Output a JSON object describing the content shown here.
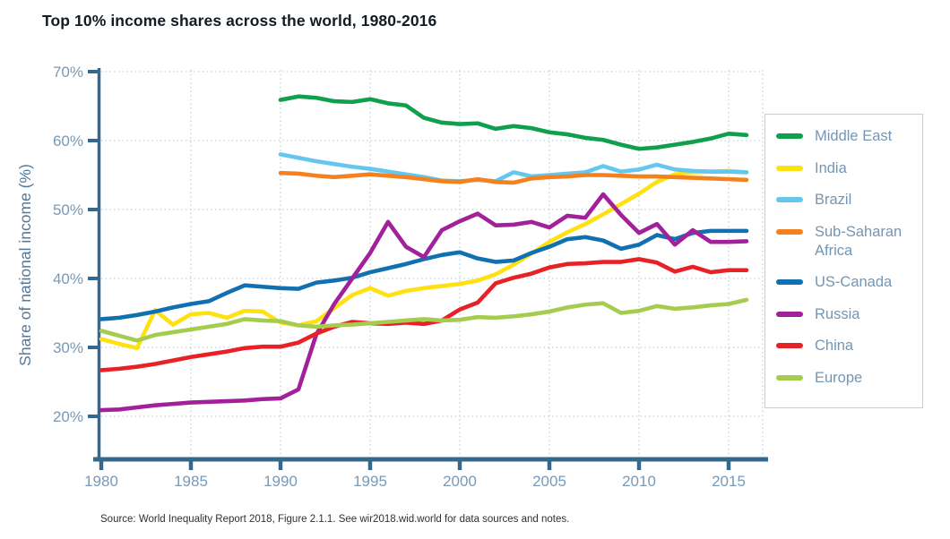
{
  "header": {
    "title": "Top 10% income shares across the world, 1980-2016"
  },
  "source": {
    "text": "Source: World Inequality Report 2018, Figure 2.1.1. See wir2018.wid.world for data sources and notes."
  },
  "colors": {
    "axis": "#34688c",
    "tick_text": "#7899b6",
    "axis_title_text": "#54799d",
    "grid": "#bcd2de",
    "page_title_text": "#131b23",
    "legend_text": "#7496b4",
    "legend_border": "#c9cdd1"
  },
  "chart_data": {
    "type": "line",
    "title": "Top 10% income shares across the world, 1980-2016",
    "xlabel": "",
    "ylabel": "Share of national income (%)",
    "xlim": [
      1980,
      2017
    ],
    "ylim": [
      16,
      71
    ],
    "grid": "dotted",
    "legend_position": "right",
    "xticks": [
      1980,
      1985,
      1990,
      1995,
      2000,
      2005,
      2010,
      2015
    ],
    "yticks": [
      20,
      30,
      40,
      50,
      60,
      70
    ],
    "ytick_labels": [
      "20%",
      "30%",
      "40%",
      "50%",
      "60%",
      "70%"
    ],
    "series": [
      {
        "name": "Middle East",
        "color": "#0fa04e",
        "start_year": 1990,
        "values": [
          65.9,
          66.4,
          66.2,
          65.7,
          65.6,
          66.0,
          65.4,
          65.1,
          63.3,
          62.6,
          62.4,
          62.5,
          61.7,
          62.1,
          61.8,
          61.2,
          60.9,
          60.4,
          60.1,
          59.4,
          58.8,
          59.0,
          59.4,
          59.8,
          60.3,
          61.0,
          60.8
        ]
      },
      {
        "name": "India",
        "color": "#ffe112",
        "start_year": 1980,
        "values": [
          31.2,
          30.5,
          29.9,
          35.4,
          33.3,
          34.8,
          35.0,
          34.3,
          35.3,
          35.2,
          33.6,
          33.2,
          33.8,
          35.7,
          37.6,
          38.6,
          37.5,
          38.2,
          38.6,
          38.9,
          39.2,
          39.7,
          40.6,
          42.0,
          43.6,
          45.3,
          46.7,
          47.9,
          49.3,
          50.8,
          52.3,
          54.0,
          55.1,
          55.4,
          55.5,
          55.6,
          55.4
        ]
      },
      {
        "name": "Brazil",
        "color": "#66c7ee",
        "start_year": 1990,
        "values": [
          58.0,
          57.5,
          57.0,
          56.6,
          56.2,
          55.9,
          55.5,
          55.1,
          54.7,
          54.2,
          54.1,
          54.3,
          54.1,
          55.4,
          54.8,
          55.0,
          55.2,
          55.4,
          56.3,
          55.5,
          55.8,
          56.5,
          55.8,
          55.6,
          55.5,
          55.5,
          55.4
        ]
      },
      {
        "name": "Sub-Saharan Africa",
        "color": "#f5801e",
        "start_year": 1990,
        "values": [
          55.3,
          55.2,
          54.9,
          54.7,
          54.9,
          55.1,
          54.9,
          54.7,
          54.4,
          54.1,
          54.0,
          54.4,
          54.0,
          53.9,
          54.5,
          54.7,
          54.8,
          55.0,
          55.0,
          54.9,
          54.8,
          54.8,
          54.7,
          54.6,
          54.5,
          54.4,
          54.3
        ]
      },
      {
        "name": "US-Canada",
        "color": "#1170b0",
        "start_year": 1980,
        "values": [
          34.1,
          34.3,
          34.7,
          35.2,
          35.8,
          36.3,
          36.7,
          37.9,
          39.0,
          38.8,
          38.6,
          38.5,
          39.4,
          39.7,
          40.1,
          40.9,
          41.5,
          42.1,
          42.8,
          43.4,
          43.8,
          42.9,
          42.4,
          42.6,
          43.7,
          44.6,
          45.7,
          46.0,
          45.5,
          44.3,
          44.9,
          46.3,
          45.7,
          46.6,
          46.9,
          46.9,
          46.9
        ]
      },
      {
        "name": "Russia",
        "color": "#a2209a",
        "start_year": 1980,
        "values": [
          20.9,
          21.0,
          21.3,
          21.6,
          21.8,
          22.0,
          22.1,
          22.2,
          22.3,
          22.5,
          22.6,
          23.9,
          31.9,
          36.3,
          40.0,
          43.7,
          48.2,
          44.6,
          43.1,
          47.0,
          48.3,
          49.4,
          47.7,
          47.8,
          48.2,
          47.4,
          49.1,
          48.8,
          52.2,
          49.2,
          46.6,
          47.9,
          44.9,
          47.0,
          45.3,
          45.3,
          45.4
        ]
      },
      {
        "name": "China",
        "color": "#e82127",
        "start_year": 1980,
        "values": [
          26.7,
          26.9,
          27.2,
          27.6,
          28.1,
          28.6,
          29.0,
          29.4,
          29.9,
          30.1,
          30.1,
          30.7,
          32.0,
          33.0,
          33.7,
          33.5,
          33.4,
          33.6,
          33.4,
          33.9,
          35.5,
          36.5,
          39.3,
          40.1,
          40.7,
          41.6,
          42.1,
          42.2,
          42.4,
          42.4,
          42.8,
          42.3,
          41.0,
          41.7,
          40.9,
          41.2,
          41.2
        ]
      },
      {
        "name": "Europe",
        "color": "#a5cc4f",
        "start_year": 1980,
        "values": [
          32.4,
          31.7,
          31.0,
          31.8,
          32.2,
          32.6,
          33.0,
          33.4,
          34.1,
          33.9,
          33.8,
          33.2,
          33.0,
          33.2,
          33.3,
          33.5,
          33.7,
          33.9,
          34.1,
          33.9,
          34.0,
          34.4,
          34.3,
          34.5,
          34.8,
          35.2,
          35.8,
          36.2,
          36.4,
          35.0,
          35.3,
          36.0,
          35.6,
          35.8,
          36.1,
          36.3,
          36.9
        ]
      }
    ]
  }
}
